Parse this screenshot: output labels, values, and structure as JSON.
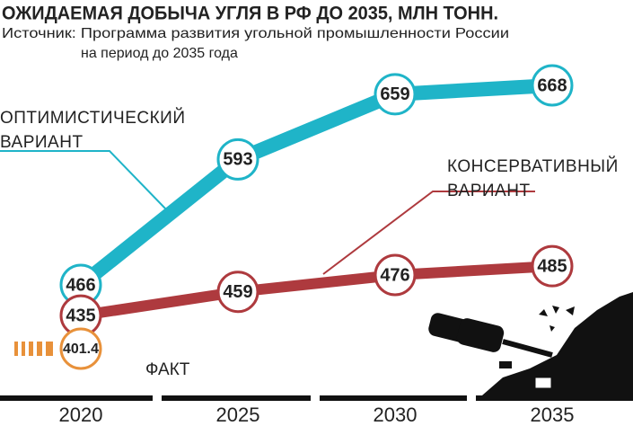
{
  "chart_data": {
    "type": "line",
    "title": "ОЖИДАЕМАЯ ДОБЫЧА УГЛЯ В РФ ДО 2035, МЛН ТОНН.",
    "source": [
      "Источник: Программа развития угольной промышленности России",
      "на период до 2035 года"
    ],
    "categories": [
      "2020",
      "2025",
      "2030",
      "2035"
    ],
    "series": [
      {
        "name": "ОПТИМИСТИЧЕСКИЙ ВАРИАНТ",
        "color": "#1fb4c8",
        "values": [
          466,
          593,
          659,
          668
        ]
      },
      {
        "name": "КОНСЕРВАТИВНЫЙ ВАРИАНТ",
        "color": "#ae3a3e",
        "values": [
          435,
          459,
          476,
          485
        ]
      },
      {
        "name": "ФАКТ",
        "color": "#e8913a",
        "values": [
          401.4,
          null,
          null,
          null
        ]
      }
    ]
  }
}
